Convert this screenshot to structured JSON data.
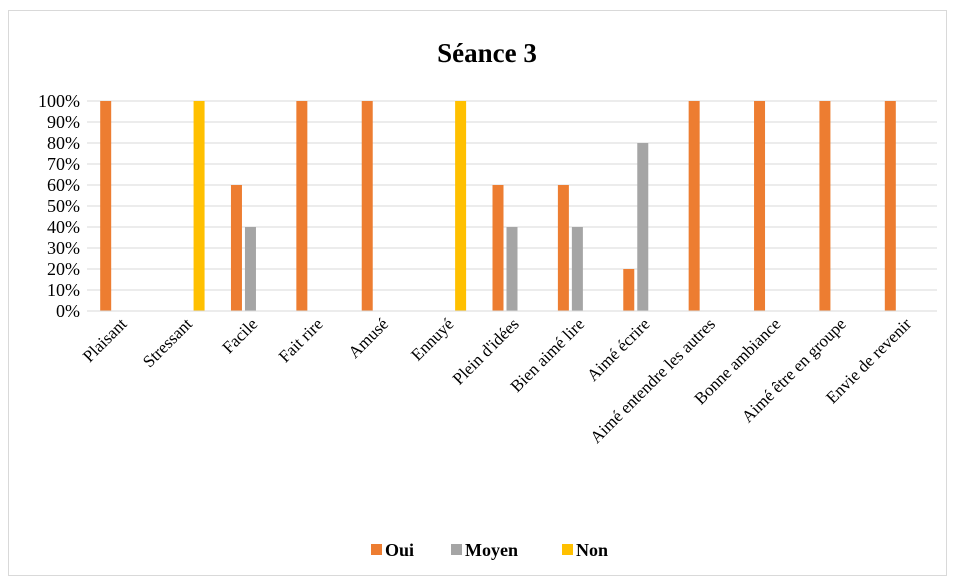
{
  "chart_data": {
    "type": "bar",
    "title": "Séance 3",
    "xlabel": "",
    "ylabel": "",
    "ylim": [
      0,
      100
    ],
    "ytick_labels": [
      "0%",
      "10%",
      "20%",
      "30%",
      "40%",
      "50%",
      "60%",
      "70%",
      "80%",
      "90%",
      "100%"
    ],
    "grid": true,
    "legend_position": "bottom",
    "categories": [
      "Plaisant",
      "Stressant",
      "Facile",
      "Fait rire",
      "Amusé",
      "Ennuyé",
      "Plein d'idées",
      "Bien aimé lire",
      "Aimé écrire",
      "Aimé entendre les autres",
      "Bonne ambiance",
      "Aimé être en groupe",
      "Envie de revenir"
    ],
    "series": [
      {
        "name": "Oui",
        "color": "#ED7D31",
        "values": [
          100,
          0,
          60,
          100,
          100,
          0,
          60,
          60,
          20,
          100,
          100,
          100,
          100
        ]
      },
      {
        "name": "Moyen",
        "color": "#A5A5A5",
        "values": [
          0,
          0,
          40,
          0,
          0,
          0,
          40,
          40,
          80,
          0,
          0,
          0,
          0
        ]
      },
      {
        "name": "Non",
        "color": "#FFC000",
        "values": [
          0,
          100,
          0,
          0,
          0,
          100,
          0,
          0,
          0,
          0,
          0,
          0,
          0
        ]
      }
    ]
  }
}
